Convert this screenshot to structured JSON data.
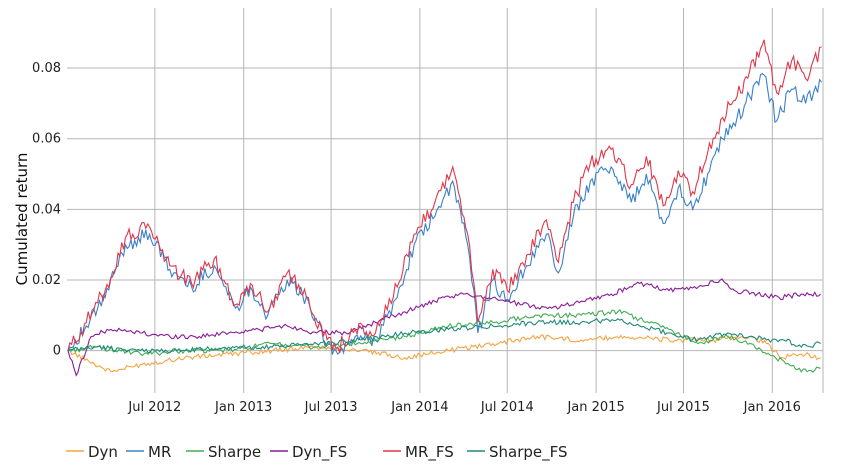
{
  "chart_data": {
    "type": "line",
    "title": "",
    "xlabel": "",
    "ylabel": "Cumulated return",
    "x_ticks": [
      "Jul 2012",
      "Jan 2013",
      "Jul 2013",
      "Jan 2014",
      "Jul 2014",
      "Jan 2015",
      "Jul 2015",
      "Jan 2016"
    ],
    "y_ticks": [
      "0",
      "0.02",
      "0.04",
      "0.06",
      "0.08"
    ],
    "ylim": [
      -0.012,
      0.097
    ],
    "xlim": [
      "2012-01-01",
      "2016-04-15"
    ],
    "grid": true,
    "legend_position": "bottom",
    "series": [
      {
        "name": "Dyn",
        "color": "#f5a442",
        "points": [
          [
            "2012-01-03",
            0.0
          ],
          [
            "2012-02-15",
            -0.003
          ],
          [
            "2012-04-01",
            -0.006
          ],
          [
            "2012-06-01",
            -0.004
          ],
          [
            "2012-09-01",
            -0.002
          ],
          [
            "2012-12-01",
            -0.001
          ],
          [
            "2013-03-01",
            0.0
          ],
          [
            "2013-06-01",
            0.001
          ],
          [
            "2013-09-01",
            0.0
          ],
          [
            "2013-12-01",
            -0.002
          ],
          [
            "2014-03-01",
            0.0
          ],
          [
            "2014-06-01",
            0.002
          ],
          [
            "2014-09-01",
            0.004
          ],
          [
            "2014-12-01",
            0.003
          ],
          [
            "2015-03-01",
            0.004
          ],
          [
            "2015-06-01",
            0.003
          ],
          [
            "2015-09-01",
            0.003
          ],
          [
            "2015-11-15",
            0.004
          ],
          [
            "2015-12-20",
            0.002
          ],
          [
            "2016-01-20",
            -0.002
          ],
          [
            "2016-03-01",
            -0.001
          ],
          [
            "2016-04-10",
            -0.002
          ]
        ]
      },
      {
        "name": "MR",
        "color": "#3b80c8",
        "points": [
          [
            "2012-01-03",
            0.0
          ],
          [
            "2012-02-10",
            0.007
          ],
          [
            "2012-03-20",
            0.015
          ],
          [
            "2012-05-01",
            0.03
          ],
          [
            "2012-06-20",
            0.033
          ],
          [
            "2012-08-01",
            0.023
          ],
          [
            "2012-09-15",
            0.018
          ],
          [
            "2012-11-01",
            0.024
          ],
          [
            "2012-12-15",
            0.012
          ],
          [
            "2013-01-15",
            0.018
          ],
          [
            "2013-02-20",
            0.01
          ],
          [
            "2013-04-01",
            0.02
          ],
          [
            "2013-05-15",
            0.014
          ],
          [
            "2013-06-15",
            0.003
          ],
          [
            "2013-07-15",
            -0.001
          ],
          [
            "2013-08-20",
            0.004
          ],
          [
            "2013-10-01",
            0.003
          ],
          [
            "2013-11-15",
            0.015
          ],
          [
            "2013-12-20",
            0.03
          ],
          [
            "2014-02-01",
            0.038
          ],
          [
            "2014-03-10",
            0.048
          ],
          [
            "2014-04-10",
            0.03
          ],
          [
            "2014-05-01",
            0.005
          ],
          [
            "2014-06-01",
            0.02
          ],
          [
            "2014-07-01",
            0.014
          ],
          [
            "2014-08-10",
            0.024
          ],
          [
            "2014-09-20",
            0.033
          ],
          [
            "2014-10-15",
            0.022
          ],
          [
            "2014-11-15",
            0.038
          ],
          [
            "2014-12-20",
            0.048
          ],
          [
            "2015-02-01",
            0.052
          ],
          [
            "2015-03-15",
            0.042
          ],
          [
            "2015-04-15",
            0.05
          ],
          [
            "2015-05-20",
            0.036
          ],
          [
            "2015-06-20",
            0.046
          ],
          [
            "2015-07-20",
            0.04
          ],
          [
            "2015-08-20",
            0.05
          ],
          [
            "2015-09-20",
            0.06
          ],
          [
            "2015-10-20",
            0.066
          ],
          [
            "2015-11-15",
            0.072
          ],
          [
            "2015-12-15",
            0.078
          ],
          [
            "2016-01-10",
            0.065
          ],
          [
            "2016-02-10",
            0.074
          ],
          [
            "2016-03-10",
            0.07
          ],
          [
            "2016-04-12",
            0.076
          ]
        ]
      },
      {
        "name": "Sharpe",
        "color": "#42ad55",
        "points": [
          [
            "2012-01-03",
            0.0
          ],
          [
            "2012-03-01",
            0.001
          ],
          [
            "2012-06-01",
            -0.001
          ],
          [
            "2012-09-01",
            0.0
          ],
          [
            "2012-12-01",
            0.0
          ],
          [
            "2013-03-01",
            0.002
          ],
          [
            "2013-06-01",
            0.001
          ],
          [
            "2013-09-01",
            0.002
          ],
          [
            "2013-12-01",
            0.004
          ],
          [
            "2014-03-01",
            0.007
          ],
          [
            "2014-06-01",
            0.008
          ],
          [
            "2014-09-01",
            0.01
          ],
          [
            "2014-12-01",
            0.01
          ],
          [
            "2015-02-15",
            0.011
          ],
          [
            "2015-04-01",
            0.009
          ],
          [
            "2015-06-01",
            0.006
          ],
          [
            "2015-08-01",
            0.002
          ],
          [
            "2015-10-01",
            0.004
          ],
          [
            "2015-11-15",
            0.002
          ],
          [
            "2015-12-20",
            -0.001
          ],
          [
            "2016-01-25",
            -0.003
          ],
          [
            "2016-03-01",
            -0.006
          ],
          [
            "2016-04-10",
            -0.005
          ]
        ]
      },
      {
        "name": "Dyn_FS",
        "color": "#8a1c96",
        "points": [
          [
            "2012-01-03",
            0.0
          ],
          [
            "2012-01-20",
            -0.007
          ],
          [
            "2012-02-20",
            0.004
          ],
          [
            "2012-04-01",
            0.006
          ],
          [
            "2012-06-01",
            0.005
          ],
          [
            "2012-08-01",
            0.004
          ],
          [
            "2012-10-01",
            0.004
          ],
          [
            "2012-12-01",
            0.005
          ],
          [
            "2013-02-01",
            0.006
          ],
          [
            "2013-04-01",
            0.007
          ],
          [
            "2013-06-01",
            0.005
          ],
          [
            "2013-08-01",
            0.005
          ],
          [
            "2013-10-01",
            0.008
          ],
          [
            "2013-12-01",
            0.011
          ],
          [
            "2014-02-01",
            0.014
          ],
          [
            "2014-04-01",
            0.016
          ],
          [
            "2014-06-01",
            0.015
          ],
          [
            "2014-08-01",
            0.013
          ],
          [
            "2014-10-01",
            0.012
          ],
          [
            "2014-12-01",
            0.014
          ],
          [
            "2015-02-01",
            0.016
          ],
          [
            "2015-04-01",
            0.019
          ],
          [
            "2015-06-01",
            0.017
          ],
          [
            "2015-08-01",
            0.018
          ],
          [
            "2015-09-15",
            0.02
          ],
          [
            "2015-10-15",
            0.017
          ],
          [
            "2015-12-01",
            0.016
          ],
          [
            "2016-01-15",
            0.015
          ],
          [
            "2016-03-01",
            0.016
          ],
          [
            "2016-04-10",
            0.016
          ]
        ]
      },
      {
        "name": "MR_FS",
        "color": "#e0364a",
        "points": [
          [
            "2012-01-03",
            0.0
          ],
          [
            "2012-02-10",
            0.008
          ],
          [
            "2012-03-20",
            0.017
          ],
          [
            "2012-05-01",
            0.032
          ],
          [
            "2012-06-20",
            0.035
          ],
          [
            "2012-08-01",
            0.024
          ],
          [
            "2012-09-15",
            0.019
          ],
          [
            "2012-11-01",
            0.026
          ],
          [
            "2012-12-15",
            0.013
          ],
          [
            "2013-01-15",
            0.019
          ],
          [
            "2013-02-20",
            0.011
          ],
          [
            "2013-04-01",
            0.022
          ],
          [
            "2013-05-15",
            0.015
          ],
          [
            "2013-06-15",
            0.004
          ],
          [
            "2013-07-15",
            0.001
          ],
          [
            "2013-08-20",
            0.006
          ],
          [
            "2013-10-01",
            0.005
          ],
          [
            "2013-11-15",
            0.018
          ],
          [
            "2013-12-20",
            0.033
          ],
          [
            "2014-02-01",
            0.042
          ],
          [
            "2014-03-10",
            0.052
          ],
          [
            "2014-04-10",
            0.033
          ],
          [
            "2014-05-01",
            0.008
          ],
          [
            "2014-06-01",
            0.023
          ],
          [
            "2014-07-01",
            0.017
          ],
          [
            "2014-08-10",
            0.027
          ],
          [
            "2014-09-20",
            0.037
          ],
          [
            "2014-10-15",
            0.025
          ],
          [
            "2014-11-15",
            0.042
          ],
          [
            "2014-12-20",
            0.053
          ],
          [
            "2015-02-01",
            0.057
          ],
          [
            "2015-03-15",
            0.047
          ],
          [
            "2015-04-15",
            0.055
          ],
          [
            "2015-05-20",
            0.041
          ],
          [
            "2015-06-20",
            0.051
          ],
          [
            "2015-07-20",
            0.045
          ],
          [
            "2015-08-20",
            0.056
          ],
          [
            "2015-09-20",
            0.066
          ],
          [
            "2015-10-20",
            0.072
          ],
          [
            "2015-11-15",
            0.079
          ],
          [
            "2015-12-15",
            0.088
          ],
          [
            "2016-01-10",
            0.073
          ],
          [
            "2016-02-10",
            0.082
          ],
          [
            "2016-03-10",
            0.077
          ],
          [
            "2016-04-12",
            0.086
          ]
        ]
      },
      {
        "name": "Sharpe_FS",
        "color": "#1f8a7a",
        "points": [
          [
            "2012-01-03",
            0.0
          ],
          [
            "2012-03-01",
            0.001
          ],
          [
            "2012-06-01",
            0.0
          ],
          [
            "2012-09-01",
            0.0
          ],
          [
            "2012-12-01",
            0.001
          ],
          [
            "2013-03-01",
            0.001
          ],
          [
            "2013-06-01",
            0.002
          ],
          [
            "2013-09-01",
            0.003
          ],
          [
            "2013-12-01",
            0.005
          ],
          [
            "2014-03-01",
            0.006
          ],
          [
            "2014-06-01",
            0.007
          ],
          [
            "2014-09-01",
            0.008
          ],
          [
            "2014-12-01",
            0.008
          ],
          [
            "2015-02-15",
            0.009
          ],
          [
            "2015-04-01",
            0.007
          ],
          [
            "2015-06-01",
            0.005
          ],
          [
            "2015-08-01",
            0.003
          ],
          [
            "2015-10-01",
            0.005
          ],
          [
            "2015-11-15",
            0.004
          ],
          [
            "2015-12-20",
            0.003
          ],
          [
            "2016-01-25",
            0.003
          ],
          [
            "2016-03-01",
            0.001
          ],
          [
            "2016-04-10",
            0.002
          ]
        ]
      }
    ]
  }
}
